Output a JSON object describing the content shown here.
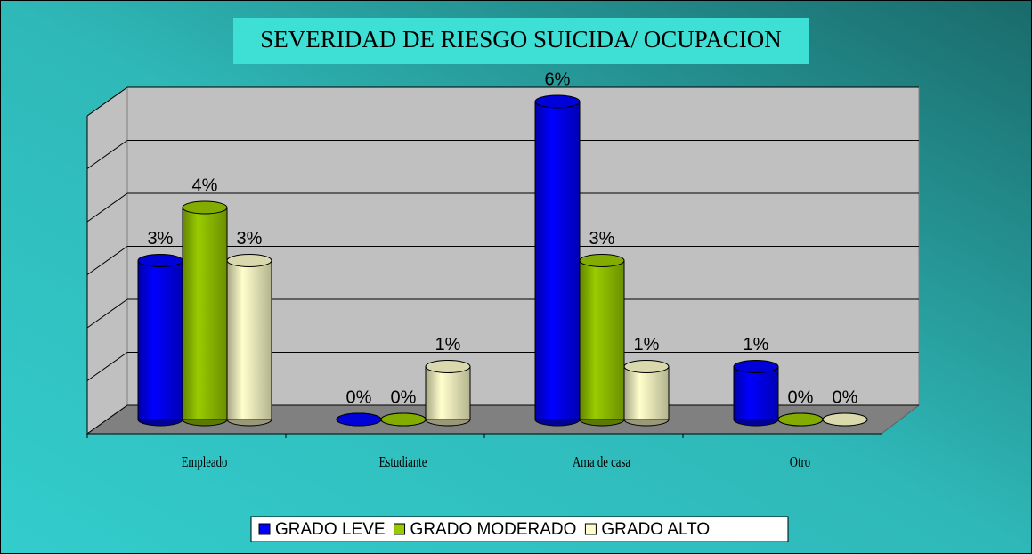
{
  "chart_data": {
    "type": "bar3d",
    "title": "SEVERIDAD DE RIESGO SUICIDA/ OCUPACION",
    "categories": [
      "Empleado",
      "Estudiante",
      "Ama de casa",
      "Otro"
    ],
    "series": [
      {
        "name": "GRADO LEVE",
        "color": "#0000ff",
        "values": [
          3,
          0,
          6,
          1
        ],
        "value_labels": [
          "3%",
          "0%",
          "6%",
          "1%"
        ]
      },
      {
        "name": "GRADO MODERADO",
        "color": "#99cc00",
        "values": [
          4,
          0,
          3,
          0
        ],
        "value_labels": [
          "4%",
          "0%",
          "3%",
          "0%"
        ]
      },
      {
        "name": "GRADO ALTO",
        "color": "#ffffcc",
        "values": [
          3,
          1,
          1,
          0
        ],
        "value_labels": [
          "3%",
          "1%",
          "1%",
          "0%"
        ]
      }
    ],
    "ylim": [
      0,
      6
    ],
    "yticks": [
      0,
      1,
      2,
      3,
      4,
      5,
      6
    ],
    "grid": true,
    "legend": "bottom"
  }
}
